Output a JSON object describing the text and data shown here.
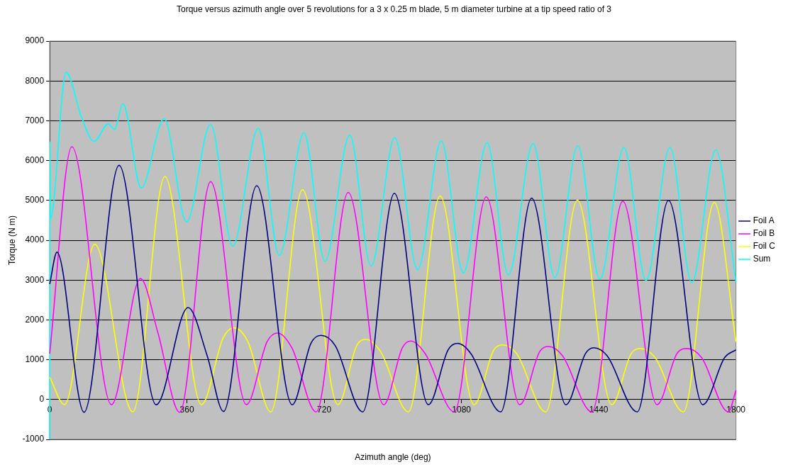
{
  "chart_data": {
    "type": "line",
    "title": "Torque versus azimuth angle over 5 revolutions for a 3 x 0.25 m blade, 5 m diameter turbine at a tip speed ratio of 3",
    "xlabel": "Azimuth angle (deg)",
    "ylabel": "Torque (N m)",
    "xlim": [
      0,
      1800
    ],
    "xticks": [
      0,
      360,
      720,
      1080,
      1440,
      1800
    ],
    "ylim": [
      -1000,
      9000
    ],
    "yticks": [
      -1000,
      0,
      1000,
      2000,
      3000,
      4000,
      5000,
      6000,
      7000,
      8000,
      9000
    ],
    "grid": "y",
    "legend": "right",
    "marker": "none",
    "line_style": "solid",
    "series": [
      {
        "name": "Foil A",
        "color": "#000080",
        "x": [
          0,
          19,
          90,
          182,
          279,
          363,
          413,
          456,
          543,
          636,
          685,
          712,
          749,
          821,
          904,
          993,
          1045,
          1070,
          1105,
          1183,
          1264,
          1354,
          1405,
          1427,
          1462,
          1541,
          1623,
          1713,
          1770,
          1800
        ],
        "values": [
          2900,
          3700,
          -320,
          5880,
          -130,
          2310,
          1100,
          -300,
          5370,
          -130,
          1410,
          1610,
          1350,
          -310,
          5180,
          -130,
          1250,
          1410,
          1150,
          -310,
          5060,
          -130,
          1150,
          1300,
          1100,
          -310,
          5000,
          -130,
          1050,
          1250
        ]
      },
      {
        "name": "Foil B",
        "color": "#ff00ff",
        "x": [
          0,
          58,
          162,
          238,
          284,
          341,
          422,
          516,
          570,
          597,
          635,
          699,
          783,
          876,
          925,
          947,
          985,
          1061,
          1145,
          1233,
          1285,
          1308,
          1345,
          1422,
          1503,
          1593,
          1645,
          1672,
          1710,
          1780,
          1800
        ],
        "values": [
          1150,
          6350,
          -130,
          3040,
          1670,
          -320,
          5470,
          -130,
          1450,
          1670,
          1300,
          -310,
          5200,
          -130,
          1300,
          1470,
          1150,
          -310,
          5090,
          -130,
          1200,
          1330,
          1100,
          -310,
          4980,
          -130,
          1150,
          1280,
          1050,
          -310,
          230
        ]
      },
      {
        "name": "Foil C",
        "color": "#ffff00",
        "x": [
          0,
          39,
          118,
          218,
          302,
          398,
          455,
          483,
          520,
          580,
          663,
          756,
          805,
          830,
          868,
          941,
          1024,
          1113,
          1165,
          1189,
          1225,
          1301,
          1384,
          1474,
          1525,
          1550,
          1588,
          1662,
          1743,
          1800
        ],
        "values": [
          560,
          -130,
          3900,
          -310,
          5600,
          -130,
          1550,
          1800,
          1450,
          -310,
          5270,
          -130,
          1350,
          1510,
          1200,
          -310,
          5110,
          -130,
          1250,
          1370,
          1150,
          -310,
          5010,
          -130,
          1150,
          1280,
          1050,
          -310,
          4950,
          1450
        ]
      },
      {
        "name": "Sum",
        "color": "#00ffff",
        "x": [
          0,
          1,
          2,
          43,
          83,
          116,
          154,
          170,
          192,
          240,
          300,
          359,
          422,
          480,
          547,
          602,
          667,
          722,
          787,
          843,
          905,
          965,
          1027,
          1085,
          1147,
          1203,
          1268,
          1325,
          1385,
          1443,
          1506,
          1564,
          1627,
          1684,
          1747,
          1800
        ],
        "values": [
          -1000,
          6480,
          4550,
          8220,
          7100,
          6480,
          6920,
          6780,
          7430,
          5310,
          7050,
          4460,
          6910,
          3850,
          6810,
          3620,
          6700,
          3470,
          6640,
          3350,
          6580,
          3260,
          6490,
          3180,
          6450,
          3130,
          6430,
          3060,
          6370,
          3020,
          6330,
          2990,
          6330,
          2940,
          6270,
          2950
        ]
      }
    ]
  }
}
